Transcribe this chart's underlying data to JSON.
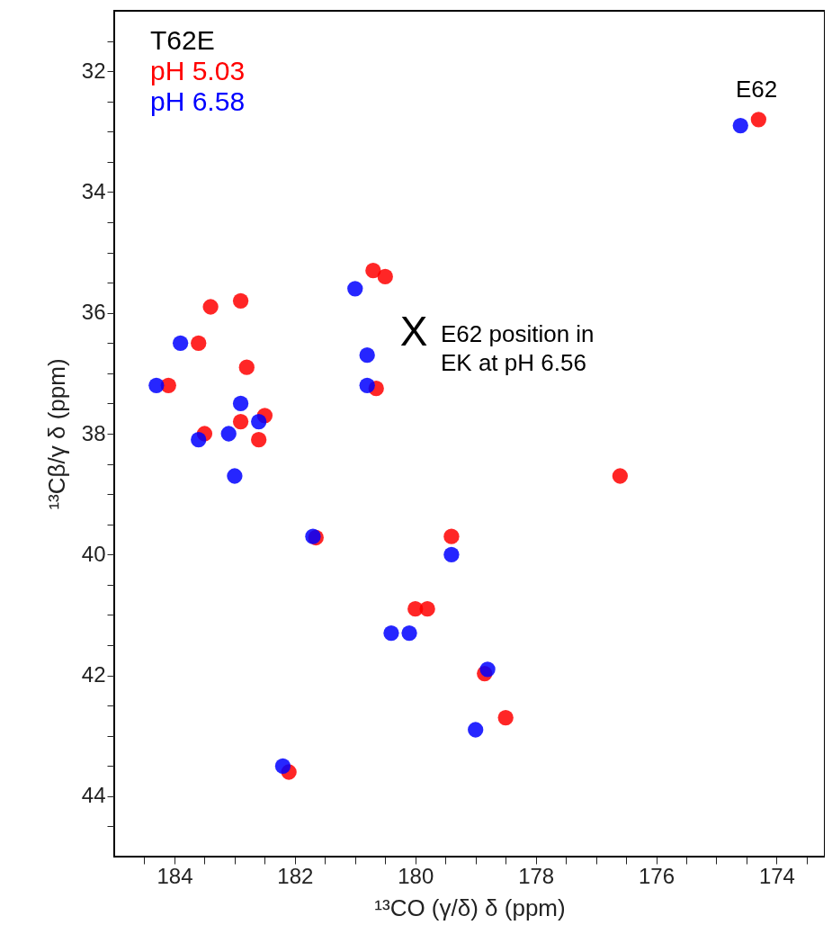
{
  "chart_data": {
    "type": "scatter",
    "legend_title": "T62E",
    "xlabel": "¹³CO (γ/δ) δ (ppm)",
    "ylabel": "¹³Cβ/γ δ (ppm)",
    "xlim": [
      185,
      173.2
    ],
    "ylim": [
      45,
      31
    ],
    "xticks": [
      {
        "value": 184.5,
        "label": null
      },
      184,
      {
        "value": 183.5,
        "label": null
      },
      {
        "value": 183,
        "label": null
      },
      {
        "value": 182.5,
        "label": null
      },
      182,
      {
        "value": 181.5,
        "label": null
      },
      {
        "value": 181,
        "label": null
      },
      {
        "value": 180.5,
        "label": null
      },
      180,
      {
        "value": 179.5,
        "label": null
      },
      {
        "value": 179,
        "label": null
      },
      {
        "value": 178.5,
        "label": null
      },
      178,
      {
        "value": 177.5,
        "label": null
      },
      {
        "value": 177,
        "label": null
      },
      {
        "value": 176.5,
        "label": null
      },
      176,
      {
        "value": 175.5,
        "label": null
      },
      {
        "value": 175,
        "label": null
      },
      {
        "value": 174.5,
        "label": null
      },
      174,
      {
        "value": 173.5,
        "label": null
      }
    ],
    "yticks": [
      {
        "value": 31.5,
        "label": null
      },
      32,
      {
        "value": 32.5,
        "label": null
      },
      {
        "value": 33,
        "label": null
      },
      {
        "value": 33.5,
        "label": null
      },
      34,
      {
        "value": 34.5,
        "label": null
      },
      {
        "value": 35,
        "label": null
      },
      {
        "value": 35.5,
        "label": null
      },
      36,
      {
        "value": 36.5,
        "label": null
      },
      {
        "value": 37,
        "label": null
      },
      {
        "value": 37.5,
        "label": null
      },
      38,
      {
        "value": 38.5,
        "label": null
      },
      {
        "value": 39,
        "label": null
      },
      {
        "value": 39.5,
        "label": null
      },
      40,
      {
        "value": 40.5,
        "label": null
      },
      {
        "value": 41,
        "label": null
      },
      {
        "value": 41.5,
        "label": null
      },
      42,
      {
        "value": 42.5,
        "label": null
      },
      {
        "value": 43,
        "label": null
      },
      {
        "value": 43.5,
        "label": null
      },
      44,
      {
        "value": 44.5,
        "label": null
      }
    ],
    "marker": "circle",
    "legend": "top left",
    "series": [
      {
        "name": "pH 5.03",
        "color": "#ff0000",
        "x": [
          174.3,
          180.7,
          180.5,
          183.4,
          182.9,
          183.6,
          182.8,
          184.1,
          180.65,
          183.5,
          182.9,
          182.5,
          182.6,
          181.65,
          179.4,
          180.0,
          179.8,
          178.85,
          178.5,
          182.1,
          176.6
        ],
        "values": [
          32.8,
          35.3,
          35.4,
          35.9,
          35.8,
          36.5,
          36.9,
          37.2,
          37.25,
          38.0,
          37.8,
          37.7,
          38.1,
          39.72,
          39.7,
          40.9,
          40.9,
          41.97,
          42.7,
          43.6,
          38.7
        ]
      },
      {
        "name": "pH 6.58",
        "color": "#0000ff",
        "x": [
          174.6,
          181.0,
          183.9,
          184.3,
          180.8,
          180.8,
          183.6,
          183.1,
          182.9,
          182.6,
          183.0,
          181.7,
          179.4,
          180.4,
          180.1,
          178.8,
          179.0,
          182.2
        ],
        "values": [
          32.9,
          35.6,
          36.5,
          37.2,
          37.2,
          36.7,
          38.1,
          38.0,
          37.5,
          37.8,
          38.7,
          39.7,
          40.0,
          41.3,
          41.3,
          41.9,
          42.9,
          43.5
        ]
      }
    ],
    "annotations": [
      "E62",
      "X",
      "E62 position in EK at pH 6.56"
    ]
  }
}
